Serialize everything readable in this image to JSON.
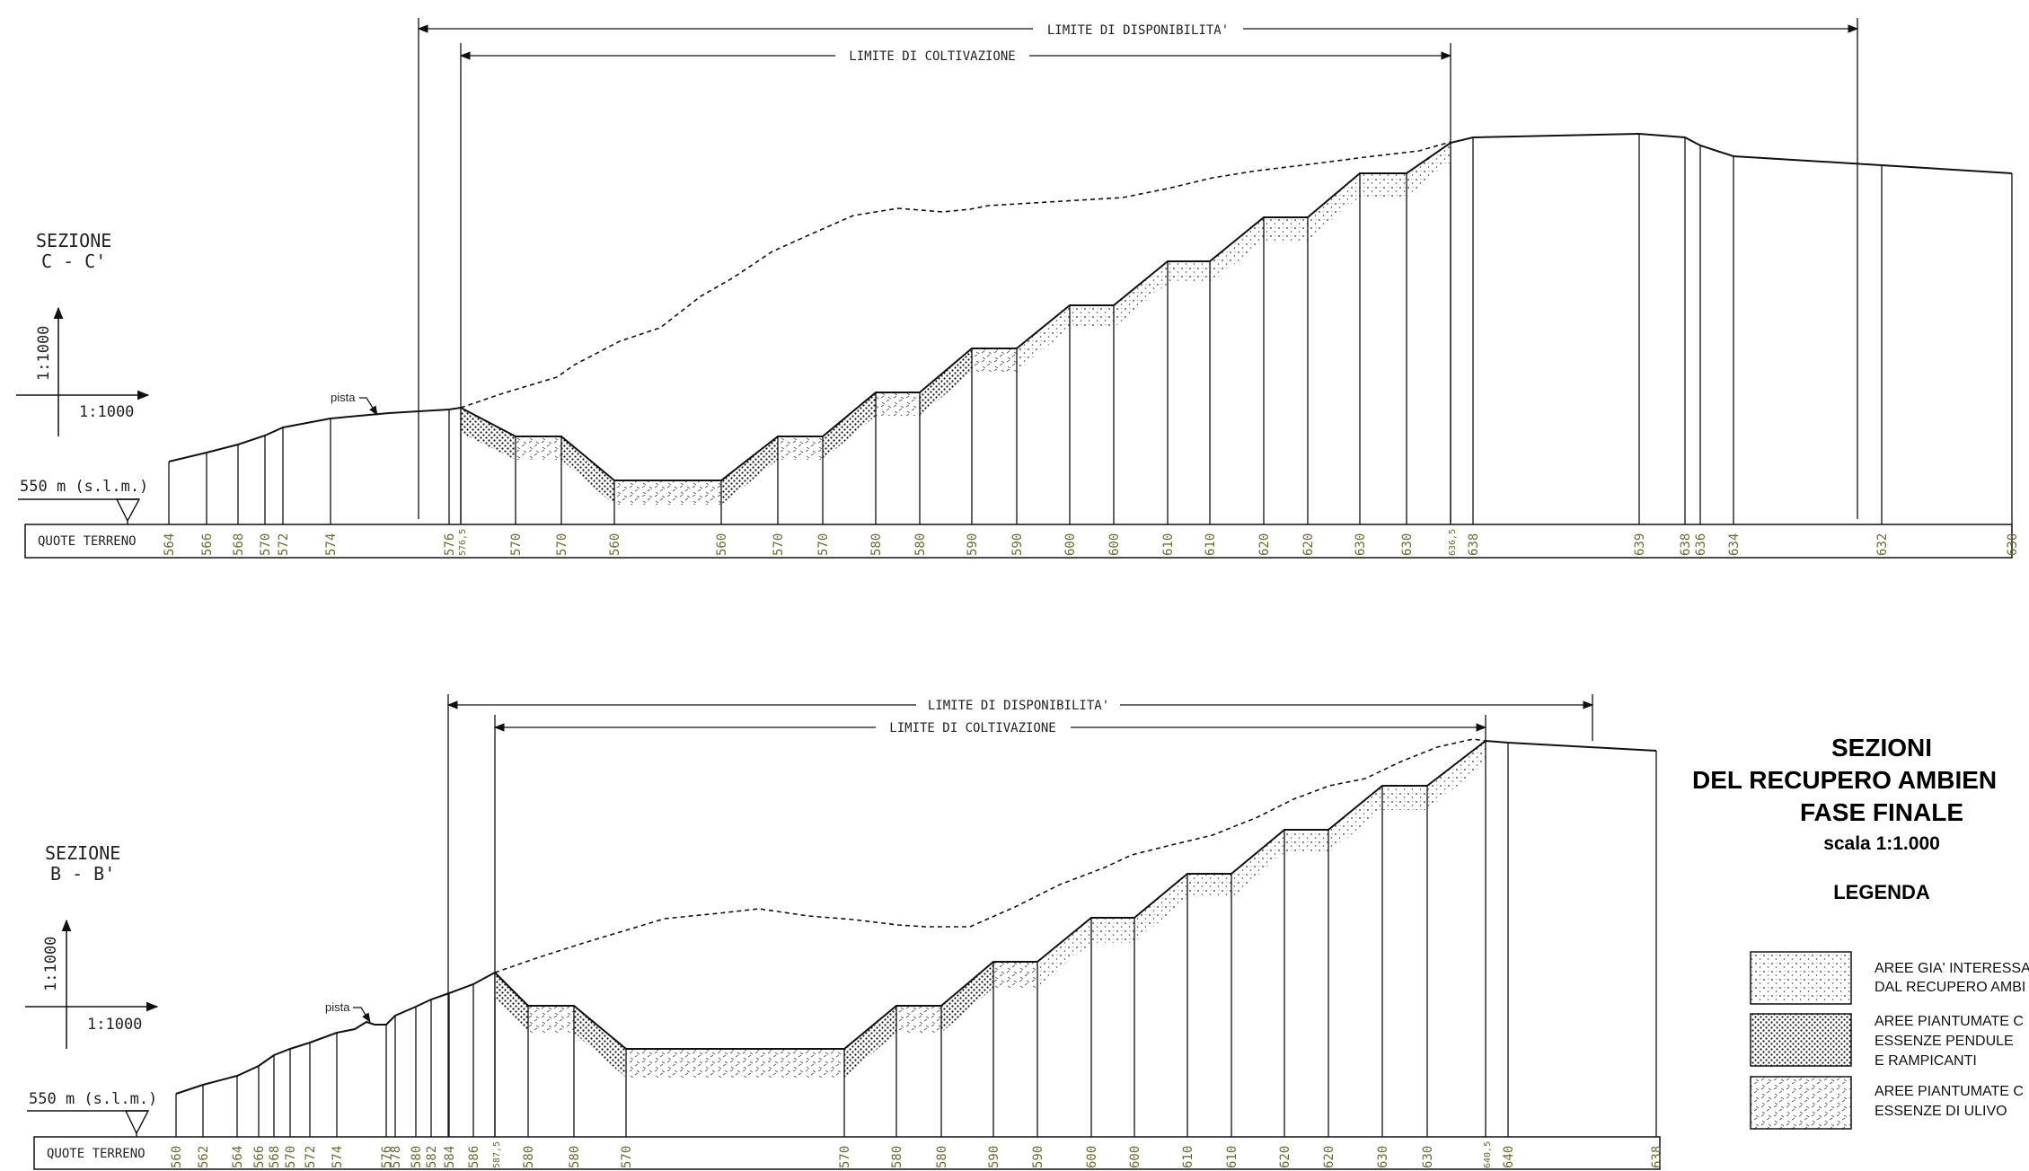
{
  "section_cc": {
    "title_line1": "SEZIONE",
    "title_line2": "C - C'",
    "scale_v": "1:1000",
    "scale_h": "1:1000",
    "reference_level": "550 m (s.l.m.)",
    "ruler_label": "QUOTE TERRENO",
    "limit_disponibilita": "LIMITE DI DISPONIBILITA'",
    "limit_coltivazione": "LIMITE DI COLTIVAZIONE",
    "track_label": "pista",
    "elevations": [
      "564",
      "566",
      "568",
      "570",
      "572",
      "574",
      "576",
      "576,5",
      "570",
      "570",
      "560",
      "560",
      "570",
      "570",
      "580",
      "580",
      "590",
      "590",
      "600",
      "600",
      "610",
      "610",
      "620",
      "620",
      "630",
      "630",
      "636,5",
      "638",
      "639",
      "638",
      "636",
      "634",
      "632",
      "630"
    ]
  },
  "section_bb": {
    "title_line1": "SEZIONE",
    "title_line2": "B - B'",
    "scale_v": "1:1000",
    "scale_h": "1:1000",
    "reference_level": "550 m (s.l.m.)",
    "ruler_label": "QUOTE TERRENO",
    "limit_disponibilita": "LIMITE DI DISPONIBILITA'",
    "limit_coltivazione": "LIMITE DI COLTIVAZIONE",
    "track_label": "pista",
    "elevations": [
      "560",
      "562",
      "564",
      "566",
      "568",
      "570",
      "572",
      "574",
      "576",
      "578",
      "580",
      "582",
      "584",
      "586",
      "587,5",
      "580",
      "580",
      "570",
      "570",
      "580",
      "580",
      "590",
      "590",
      "600",
      "600",
      "610",
      "610",
      "620",
      "620",
      "630",
      "630",
      "640,5",
      "640",
      "638"
    ]
  },
  "title_block": {
    "line1": "SEZIONI",
    "line2": "DEL RECUPERO AMBIEN",
    "line3": "FASE FINALE",
    "scale": "scala 1:1.000",
    "legend_title": "LEGENDA",
    "legend": [
      {
        "line1": "AREE GIA' INTERESSA",
        "line2": "DAL RECUPERO AMBI",
        "line3": ""
      },
      {
        "line1": "AREE PIANTUMATE C",
        "line2": "ESSENZE PENDULE",
        "line3": "E RAMPICANTI"
      },
      {
        "line1": "AREE PIANTUMATE C",
        "line2": "ESSENZE DI ULIVO",
        "line3": ""
      }
    ]
  },
  "colors": {
    "line": "#111111",
    "tick_label": "#6b6b2e",
    "background": "#ffffff"
  }
}
